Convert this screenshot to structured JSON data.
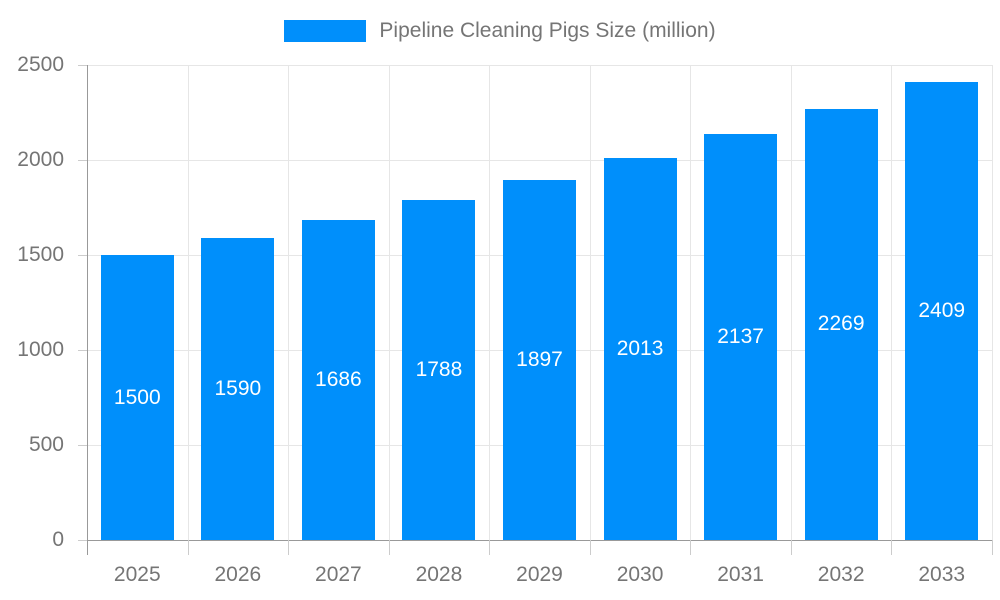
{
  "legend": {
    "label": "Pipeline Cleaning Pigs Size (million)"
  },
  "chart_data": {
    "type": "bar",
    "title": "Pipeline Cleaning Pigs Size (million)",
    "categories": [
      "2025",
      "2026",
      "2027",
      "2028",
      "2029",
      "2030",
      "2031",
      "2032",
      "2033"
    ],
    "values": [
      1500,
      1590,
      1686,
      1788,
      1897,
      2013,
      2137,
      2269,
      2409
    ],
    "xlabel": "",
    "ylabel": "",
    "ylim": [
      0,
      2500
    ],
    "y_ticks": [
      0,
      500,
      1000,
      1500,
      2000,
      2500
    ],
    "grid": true,
    "legend_position": "top-center",
    "value_labels": "inside-center",
    "colors": {
      "bar": "#008FFB",
      "bar_value_text": "#ffffff",
      "axis_text": "#757575",
      "legend_text": "#757575",
      "gridline": "#e6e6e6",
      "axis_line": "#999999",
      "tick": "#cccccc",
      "background": "#ffffff"
    }
  }
}
